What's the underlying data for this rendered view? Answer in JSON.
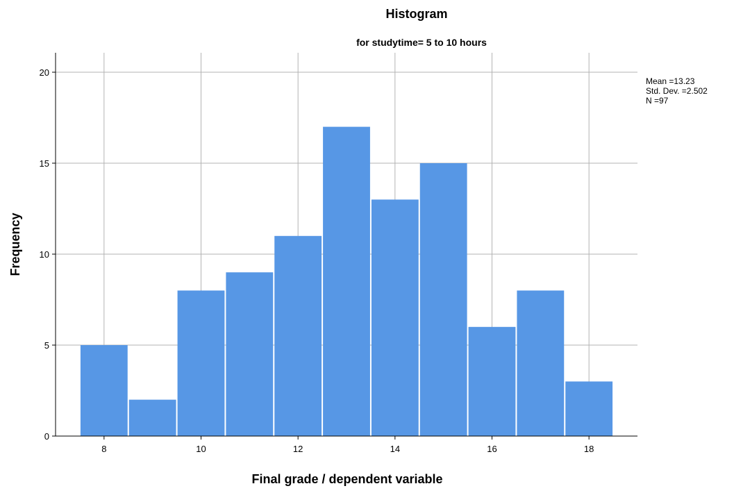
{
  "chart_data": {
    "type": "bar",
    "title": "Histogram",
    "subtitle": "for studytime= 5 to 10 hours",
    "xlabel": "Final grade / dependent variable",
    "ylabel": "Frequency",
    "bin_centers": [
      8,
      9,
      10,
      11,
      12,
      13,
      14,
      15,
      16,
      17,
      18
    ],
    "values": [
      5,
      2,
      8,
      9,
      11,
      17,
      13,
      15,
      6,
      8,
      3
    ],
    "x_ticks": [
      8,
      10,
      12,
      14,
      16,
      18
    ],
    "y_ticks": [
      0,
      5,
      10,
      15,
      20
    ],
    "xlim": [
      7.0,
      19.0
    ],
    "ylim": [
      0,
      21
    ],
    "grid": true,
    "bar_color": "#5797e5",
    "grid_color": "#b3b3b3",
    "legend_position": "right",
    "stats": {
      "mean": "Mean =13.23",
      "std_dev": "Std. Dev. =2.502",
      "n": "N =97"
    }
  }
}
